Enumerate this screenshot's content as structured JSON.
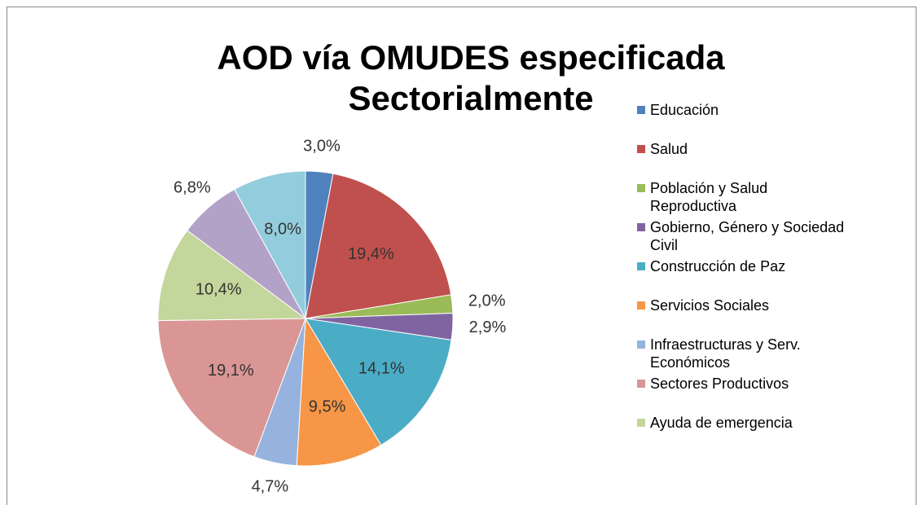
{
  "chart_data": {
    "type": "pie",
    "title": [
      "AOD vía OMUDES especificada",
      "Sectorialmente"
    ],
    "categories": [
      "Educación",
      "Salud",
      "Población y Salud Reproductiva",
      "Gobierno, Género y Sociedad Civil",
      "Construcción de Paz",
      "Servicios Sociales",
      "Infraestructuras y Serv. Económicos",
      "Sectores Productivos",
      "Ayuda de emergencia",
      null,
      null
    ],
    "values": [
      3.0,
      19.4,
      2.0,
      2.9,
      14.1,
      9.5,
      4.7,
      19.1,
      10.4,
      6.8,
      8.0
    ],
    "value_labels": [
      "3,0%",
      "19,4%",
      "2,0%",
      "2,9%",
      "14,1%",
      "9,5%",
      "4,7%",
      "19,1%",
      "10,4%",
      "6,8%",
      "8,0%"
    ],
    "colors": [
      "#4F81BD",
      "#C0504D",
      "#9BBB59",
      "#8064A2",
      "#4BACC6",
      "#F79646",
      "#95B3DE",
      "#D99694",
      "#C3D69B",
      "#B3A2C7",
      "#93CDDD"
    ],
    "legend": "right"
  }
}
